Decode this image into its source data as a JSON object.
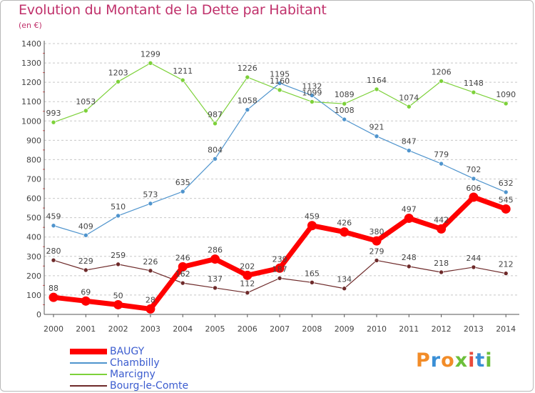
{
  "header": {
    "title": "Evolution du Montant de la Dette par Habitant",
    "unit": "(en €)"
  },
  "logo": {
    "text": "Proxiti",
    "colors": [
      "#f28c28",
      "#3a8fd6",
      "#6cbf3a",
      "#e94b3c"
    ]
  },
  "colors": {
    "title": "#c0316b",
    "axis": "#555555",
    "grid": "#c8c8c8",
    "label": "#444444"
  },
  "chart_data": {
    "type": "line",
    "title": "Evolution du Montant de la Dette par Habitant",
    "subtitle": "(en €)",
    "x": [
      "2000",
      "2001",
      "2002",
      "2003",
      "2004",
      "2005",
      "2006",
      "2007",
      "2008",
      "2009",
      "2010",
      "2011",
      "2012",
      "2013",
      "2014"
    ],
    "yticks": [
      0,
      100,
      200,
      300,
      400,
      500,
      600,
      700,
      800,
      900,
      1000,
      1100,
      1200,
      1300,
      1400
    ],
    "ylim": [
      0,
      1400
    ],
    "grid": "horizontal dashed",
    "legend_position": "bottom-left",
    "series": [
      {
        "name": "BAUGY",
        "color": "#ff0000",
        "values": [
          88,
          69,
          50,
          28,
          246,
          286,
          202,
          239,
          459,
          426,
          380,
          497,
          442,
          606,
          545
        ]
      },
      {
        "name": "Chambilly",
        "color": "#4f94cd",
        "values": [
          459,
          409,
          510,
          573,
          635,
          804,
          1058,
          1195,
          1132,
          1008,
          921,
          847,
          779,
          702,
          632
        ]
      },
      {
        "name": "Marcigny",
        "color": "#7dd13a",
        "values": [
          993,
          1053,
          1203,
          1299,
          1211,
          987,
          1226,
          1160,
          1099,
          1089,
          1164,
          1074,
          1206,
          1148,
          1090
        ]
      },
      {
        "name": "Bourg-le-Comte",
        "color": "#6e2a2a",
        "values": [
          280,
          229,
          259,
          226,
          162,
          137,
          112,
          187,
          165,
          134,
          279,
          248,
          218,
          244,
          212
        ]
      }
    ]
  }
}
